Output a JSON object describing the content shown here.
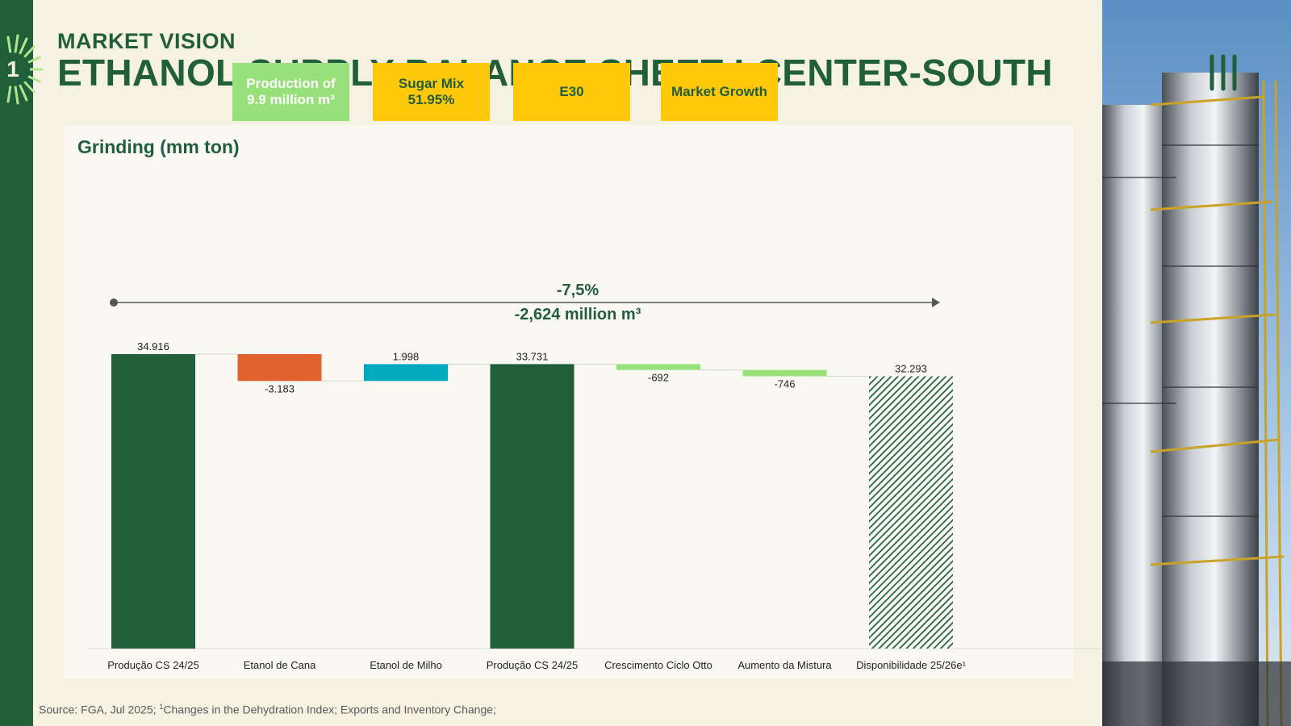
{
  "header": {
    "badge_number": "1",
    "eyebrow": "MARKET VISION",
    "title": "ETHANOL SUPPLY BALANCE SHEET I CENTER-SOUTH"
  },
  "panel": {
    "title": "Grinding (mm ton)"
  },
  "tags": [
    {
      "line1": "Production of",
      "line2": "9.9 million m³",
      "style": "green"
    },
    {
      "line1": "Sugar Mix",
      "line2": "51.95%",
      "style": "yellow"
    },
    {
      "line1": "E30",
      "line2": "",
      "style": "yellow"
    },
    {
      "line1": "Market Growth",
      "line2": "",
      "style": "yellow"
    }
  ],
  "variation": {
    "percent": "-7,5%",
    "volume": "-2,624 million m³"
  },
  "chart_data": {
    "type": "waterfall",
    "title": "Grinding (mm ton)",
    "categories": [
      "Produção CS 24/25",
      "Etanol de Cana",
      "Etanol de Milho",
      "Produção CS 24/25",
      "Crescimento Ciclo Otto",
      "Aumento da Mistura",
      "Disponibilidade 25/26e¹"
    ],
    "values": [
      34916,
      -3183,
      1998,
      33731,
      -692,
      -746,
      32293
    ],
    "labels": [
      "34.916",
      "-3.183",
      "1.998",
      "33.731",
      "-692",
      "-746",
      "32.293"
    ],
    "kinds": [
      "total",
      "delta",
      "delta",
      "total",
      "delta",
      "delta",
      "total-hatched"
    ],
    "colors": [
      "#215e3a",
      "#e0622d",
      "#00a9bd",
      "#215e3a",
      "#98e07a",
      "#98e07a",
      "#215e3a"
    ],
    "ylim": [
      0,
      34916
    ]
  },
  "footer": {
    "source_prefix": "Source: FGA, Jul 2025; ",
    "source_sup": "1",
    "source_rest": "Changes in the Dehydration Index; Exports and Inventory Change;"
  },
  "colors": {
    "brand_green": "#215e3a",
    "light_green": "#98e07a",
    "yellow": "#ffc80a",
    "orange": "#e0622d",
    "teal": "#00a9bd",
    "background": "#f5f1e3"
  }
}
